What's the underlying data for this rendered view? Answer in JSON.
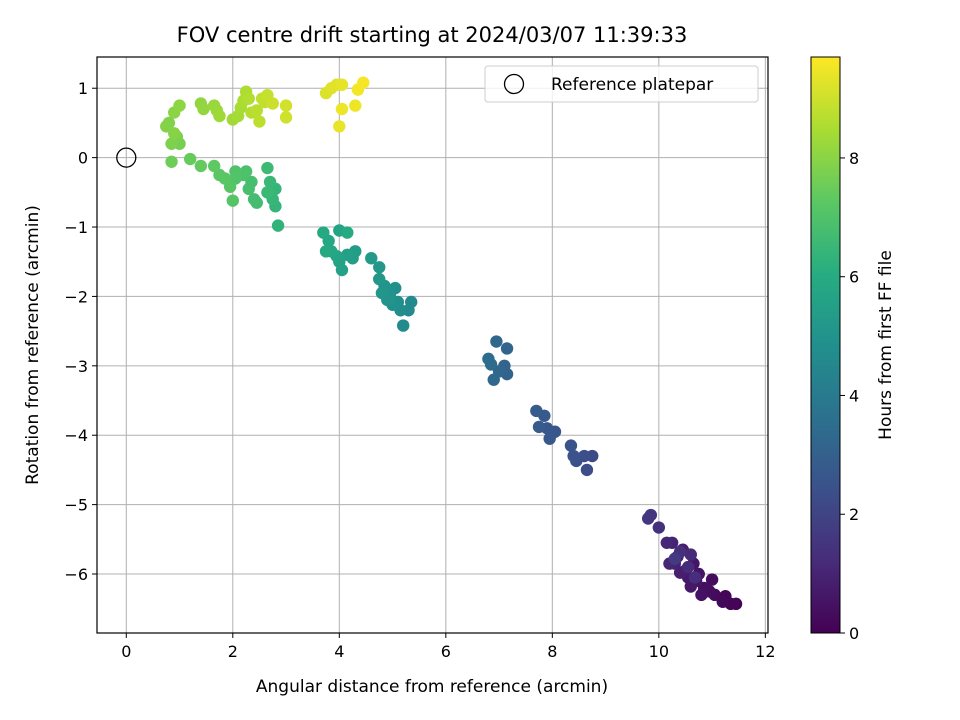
{
  "chart_data": {
    "type": "scatter",
    "title": "FOV centre drift starting at 2024/03/07 11:39:33",
    "xlabel": "Angular distance from reference (arcmin)",
    "ylabel": "Rotation from reference (arcmin)",
    "xlim": [
      -0.55,
      12.05
    ],
    "ylim": [
      -6.85,
      1.45
    ],
    "xticks": [
      0,
      2,
      4,
      6,
      8,
      10,
      12
    ],
    "yticks": [
      -6,
      -5,
      -4,
      -3,
      -2,
      -1,
      0,
      1
    ],
    "grid": true,
    "legend": {
      "placement": "top-right",
      "entries": [
        "Reference platepar"
      ]
    },
    "reference_point": {
      "x": 0,
      "y": 0
    },
    "colorbar": {
      "label": "Hours from first FF file",
      "range": [
        0,
        9.7
      ],
      "ticks": [
        0,
        2,
        4,
        6,
        8
      ],
      "colormap": [
        "#440154",
        "#472c7a",
        "#3b518b",
        "#2c718e",
        "#21908d",
        "#27ad81",
        "#5cc863",
        "#aadc32",
        "#fde725"
      ]
    },
    "series": [
      {
        "points": [
          [
            11.45,
            -6.43,
            0.05
          ],
          [
            11.35,
            -6.43,
            0.1
          ],
          [
            11.25,
            -6.32,
            0.15
          ],
          [
            11.2,
            -6.4,
            0.2
          ],
          [
            11.05,
            -6.3,
            0.25
          ],
          [
            11.0,
            -6.08,
            0.3
          ],
          [
            10.95,
            -6.25,
            0.35
          ],
          [
            10.85,
            -6.2,
            0.4
          ],
          [
            10.8,
            -6.3,
            0.45
          ],
          [
            10.75,
            -6.0,
            0.5
          ],
          [
            10.7,
            -6.1,
            0.55
          ],
          [
            10.65,
            -5.85,
            0.6
          ],
          [
            10.6,
            -6.18,
            0.65
          ],
          [
            10.55,
            -6.05,
            0.7
          ],
          [
            10.5,
            -5.95,
            0.75
          ],
          [
            10.45,
            -5.65,
            0.8
          ],
          [
            10.4,
            -5.98,
            0.85
          ],
          [
            10.35,
            -5.75,
            0.9
          ],
          [
            10.3,
            -5.85,
            0.95
          ],
          [
            10.25,
            -5.55,
            1.0
          ],
          [
            10.2,
            -5.85,
            1.05
          ],
          [
            10.15,
            -5.55,
            1.1
          ],
          [
            10.6,
            -5.72,
            1.15
          ],
          [
            10.55,
            -5.9,
            1.2
          ],
          [
            10.68,
            -6.05,
            1.25
          ],
          [
            10.4,
            -5.68,
            1.3
          ],
          [
            10.0,
            -5.33,
            1.4
          ],
          [
            9.85,
            -5.15,
            1.5
          ],
          [
            9.8,
            -5.2,
            1.6
          ],
          [
            10.3,
            -5.78,
            1.7
          ],
          [
            8.75,
            -4.3,
            2.2
          ],
          [
            8.65,
            -4.5,
            2.3
          ],
          [
            8.6,
            -4.3,
            2.35
          ],
          [
            8.45,
            -4.37,
            2.4
          ],
          [
            8.4,
            -4.3,
            2.45
          ],
          [
            8.35,
            -4.15,
            2.5
          ],
          [
            8.05,
            -3.95,
            2.6
          ],
          [
            7.95,
            -4.05,
            2.65
          ],
          [
            7.9,
            -3.9,
            2.7
          ],
          [
            7.85,
            -3.72,
            2.75
          ],
          [
            7.75,
            -3.88,
            2.8
          ],
          [
            7.7,
            -3.65,
            2.85
          ],
          [
            7.15,
            -3.12,
            3.1
          ],
          [
            7.1,
            -3.0,
            3.15
          ],
          [
            7.15,
            -2.75,
            3.2
          ],
          [
            7.0,
            -3.08,
            3.25
          ],
          [
            6.95,
            -2.65,
            3.3
          ],
          [
            6.9,
            -3.2,
            3.35
          ],
          [
            6.85,
            -2.98,
            3.4
          ],
          [
            6.8,
            -2.9,
            3.45
          ],
          [
            5.35,
            -2.08,
            4.6
          ],
          [
            5.3,
            -2.2,
            4.65
          ],
          [
            5.2,
            -2.42,
            4.7
          ],
          [
            5.15,
            -2.2,
            4.75
          ],
          [
            5.1,
            -2.08,
            4.8
          ],
          [
            5.05,
            -1.88,
            4.85
          ],
          [
            5.0,
            -2.12,
            4.9
          ],
          [
            4.95,
            -1.98,
            4.95
          ],
          [
            4.9,
            -2.05,
            5.0
          ],
          [
            4.85,
            -1.85,
            5.05
          ],
          [
            4.8,
            -1.95,
            5.1
          ],
          [
            4.75,
            -1.75,
            5.15
          ],
          [
            4.75,
            -1.58,
            5.2
          ],
          [
            4.6,
            -1.45,
            5.25
          ],
          [
            4.3,
            -1.35,
            5.4
          ],
          [
            4.25,
            -1.45,
            5.45
          ],
          [
            4.15,
            -1.4,
            5.5
          ],
          [
            4.05,
            -1.62,
            5.55
          ],
          [
            4.0,
            -1.5,
            5.6
          ],
          [
            4.0,
            -1.05,
            5.65
          ],
          [
            3.95,
            -1.42,
            5.7
          ],
          [
            3.85,
            -1.35,
            5.75
          ],
          [
            3.8,
            -1.2,
            5.8
          ],
          [
            3.75,
            -1.35,
            5.85
          ],
          [
            3.7,
            -1.08,
            5.9
          ],
          [
            4.15,
            -1.08,
            5.95
          ],
          [
            2.85,
            -0.98,
            6.3
          ],
          [
            2.8,
            -0.7,
            6.35
          ],
          [
            2.8,
            -0.45,
            6.4
          ],
          [
            2.75,
            -0.6,
            6.45
          ],
          [
            2.7,
            -0.35,
            6.5
          ],
          [
            2.65,
            -0.5,
            6.55
          ],
          [
            2.65,
            -0.15,
            6.6
          ],
          [
            2.45,
            -0.65,
            6.7
          ],
          [
            2.4,
            -0.6,
            6.75
          ],
          [
            2.35,
            -0.35,
            6.8
          ],
          [
            2.3,
            -0.45,
            6.85
          ],
          [
            2.25,
            -0.2,
            6.9
          ],
          [
            2.2,
            -0.25,
            6.95
          ],
          [
            2.05,
            -0.2,
            7.0
          ],
          [
            2.05,
            -0.3,
            7.05
          ],
          [
            2.0,
            -0.62,
            7.1
          ],
          [
            1.95,
            -0.42,
            7.15
          ],
          [
            1.85,
            -0.3,
            7.2
          ],
          [
            1.75,
            -0.25,
            7.25
          ],
          [
            1.65,
            -0.12,
            7.3
          ],
          [
            1.4,
            -0.12,
            7.4
          ],
          [
            1.2,
            -0.02,
            7.45
          ],
          [
            0.85,
            -0.06,
            7.55
          ],
          [
            1.0,
            0.2,
            7.7
          ],
          [
            0.95,
            0.3,
            7.75
          ],
          [
            0.85,
            0.2,
            7.8
          ],
          [
            0.8,
            0.5,
            7.85
          ],
          [
            0.75,
            0.45,
            7.9
          ],
          [
            0.9,
            0.35,
            7.95
          ],
          [
            0.9,
            0.65,
            8.0
          ],
          [
            1.0,
            0.75,
            8.05
          ],
          [
            1.4,
            0.78,
            8.1
          ],
          [
            1.45,
            0.7,
            8.15
          ],
          [
            1.65,
            0.75,
            8.2
          ],
          [
            1.7,
            0.68,
            8.25
          ],
          [
            1.75,
            0.6,
            8.3
          ],
          [
            2.0,
            0.55,
            8.35
          ],
          [
            2.1,
            0.6,
            8.4
          ],
          [
            2.15,
            0.72,
            8.45
          ],
          [
            2.2,
            0.82,
            8.5
          ],
          [
            2.25,
            0.95,
            8.55
          ],
          [
            2.3,
            0.85,
            8.6
          ],
          [
            2.35,
            0.65,
            8.65
          ],
          [
            2.45,
            0.68,
            8.7
          ],
          [
            2.5,
            0.52,
            8.75
          ],
          [
            2.55,
            0.85,
            8.8
          ],
          [
            2.6,
            0.8,
            8.85
          ],
          [
            2.65,
            0.9,
            8.9
          ],
          [
            2.75,
            0.78,
            8.95
          ],
          [
            3.0,
            0.58,
            9.0
          ],
          [
            3.0,
            0.75,
            9.05
          ],
          [
            3.75,
            0.93,
            9.2
          ],
          [
            3.85,
            1.0,
            9.25
          ],
          [
            3.95,
            1.05,
            9.3
          ],
          [
            4.05,
            1.05,
            9.35
          ],
          [
            4.0,
            0.45,
            9.4
          ],
          [
            4.05,
            0.7,
            9.45
          ],
          [
            4.3,
            0.75,
            9.5
          ],
          [
            4.35,
            0.98,
            9.55
          ],
          [
            4.45,
            1.08,
            9.6
          ]
        ]
      }
    ]
  }
}
